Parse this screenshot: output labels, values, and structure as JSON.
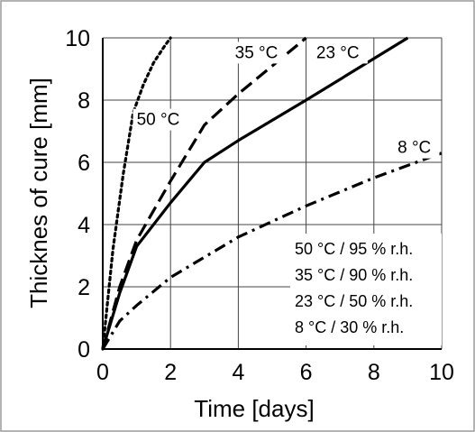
{
  "chart_data": {
    "type": "line",
    "xlabel": "Time [days]",
    "ylabel": "Thicknes of cure [mm]",
    "xlim": [
      0,
      10
    ],
    "ylim": [
      0,
      10
    ],
    "xticks": [
      "0",
      "2",
      "4",
      "6",
      "8",
      "10"
    ],
    "yticks": [
      "0",
      "2",
      "4",
      "6",
      "8",
      "10"
    ],
    "grid": true,
    "series": [
      {
        "name": "50 °C",
        "style": "dotted",
        "x": [
          0,
          0.3,
          0.6,
          0.9,
          1.2,
          1.5,
          1.8,
          2.0
        ],
        "y": [
          0,
          3.2,
          5.6,
          7.6,
          8.5,
          9.2,
          9.7,
          10
        ]
      },
      {
        "name": "35 °C",
        "style": "dashed",
        "x": [
          0,
          0.5,
          1.0,
          2.0,
          3.0,
          4.0,
          5.0,
          6.0
        ],
        "y": [
          0,
          2.0,
          3.5,
          5.4,
          7.2,
          8.2,
          9.1,
          10
        ]
      },
      {
        "name": "23 °C",
        "style": "solid",
        "x": [
          0,
          0.5,
          1.0,
          2.0,
          3.0,
          4.0,
          6.0,
          9.0
        ],
        "y": [
          0,
          1.8,
          3.3,
          4.7,
          6.0,
          6.7,
          8.0,
          10
        ]
      },
      {
        "name": "8 °C",
        "style": "dashdot",
        "x": [
          0,
          0.5,
          1.0,
          2.0,
          4.0,
          6.0,
          8.0,
          10.0
        ],
        "y": [
          0,
          0.9,
          1.4,
          2.3,
          3.6,
          4.6,
          5.5,
          6.3
        ]
      }
    ],
    "annotations": [
      {
        "text": "50 °C",
        "x": 1.0,
        "y": 7.2
      },
      {
        "text": "35 °C",
        "x": 3.9,
        "y": 9.35
      },
      {
        "text": "23 °C",
        "x": 6.3,
        "y": 9.35
      },
      {
        "text": "8 °C",
        "x": 8.7,
        "y": 6.3
      }
    ],
    "legend_text": [
      "50 °C / 95 % r.h.",
      "35 °C / 90 % r.h.",
      "23 °C / 50 % r.h.",
      "8 °C / 30 % r.h."
    ],
    "legend_position": "bottom-right"
  }
}
